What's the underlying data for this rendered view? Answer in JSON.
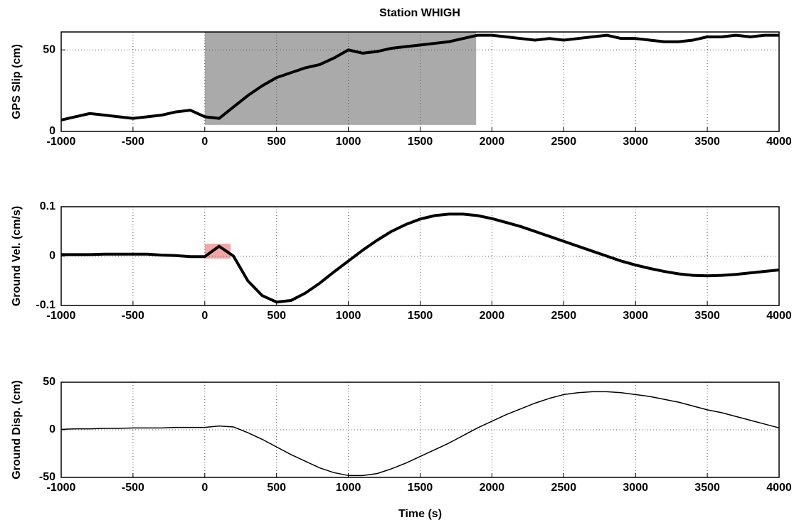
{
  "chart_data": [
    {
      "type": "line",
      "title": "Station WHIGH",
      "ylabel": "GPS Slip (cm)",
      "x": [
        -1000,
        -900,
        -800,
        -700,
        -600,
        -500,
        -400,
        -300,
        -200,
        -100,
        0,
        100,
        200,
        300,
        400,
        500,
        600,
        700,
        800,
        900,
        1000,
        1100,
        1200,
        1300,
        1400,
        1500,
        1600,
        1700,
        1800,
        1900,
        2000,
        2100,
        2200,
        2300,
        2400,
        2500,
        2600,
        2700,
        2800,
        2900,
        3000,
        3100,
        3200,
        3300,
        3400,
        3500,
        3600,
        3700,
        3800,
        3900,
        4000
      ],
      "series": [
        {
          "color": "#000000",
          "line_width": 4,
          "values": [
            7,
            9,
            11,
            10,
            9,
            8,
            9,
            10,
            12,
            13,
            9,
            8,
            15,
            22,
            28,
            33,
            36,
            39,
            41,
            45,
            50,
            48,
            49,
            51,
            52,
            53,
            54,
            55,
            57,
            59,
            59,
            58,
            57,
            56,
            57,
            56,
            57,
            58,
            59,
            57,
            57,
            56,
            55,
            55,
            56,
            58,
            58,
            59,
            58,
            59,
            59
          ]
        }
      ],
      "highlights": [
        {
          "x": [
            0,
            1890
          ],
          "y": [
            4,
            61
          ],
          "color": "#aaaaaa"
        }
      ],
      "xlim": [
        -1000,
        4000
      ],
      "xticks": [
        -1000,
        -500,
        0,
        500,
        1000,
        1500,
        2000,
        2500,
        3000,
        3500,
        4000
      ],
      "ylim": [
        0,
        61
      ],
      "yticks": [
        0,
        50
      ],
      "grid": true
    },
    {
      "type": "line",
      "ylabel": "Ground Vel. (cm/s)",
      "x": [
        -1000,
        -900,
        -800,
        -700,
        -600,
        -500,
        -400,
        -300,
        -200,
        -100,
        0,
        100,
        200,
        300,
        400,
        500,
        600,
        700,
        800,
        900,
        1000,
        1100,
        1200,
        1300,
        1400,
        1500,
        1600,
        1700,
        1800,
        1900,
        2000,
        2100,
        2200,
        2300,
        2400,
        2500,
        2600,
        2700,
        2800,
        2900,
        3000,
        3100,
        3200,
        3300,
        3400,
        3500,
        3600,
        3700,
        3800,
        3900,
        4000
      ],
      "series": [
        {
          "color": "#000000",
          "line_width": 4,
          "values": [
            0.003,
            0.003,
            0.003,
            0.004,
            0.004,
            0.004,
            0.004,
            0.002,
            0.001,
            -0.001,
            -0.001,
            0.02,
            0.0,
            -0.05,
            -0.08,
            -0.093,
            -0.09,
            -0.075,
            -0.055,
            -0.032,
            -0.01,
            0.012,
            0.032,
            0.05,
            0.064,
            0.075,
            0.082,
            0.085,
            0.085,
            0.082,
            0.076,
            0.068,
            0.06,
            0.05,
            0.04,
            0.03,
            0.02,
            0.01,
            0.0,
            -0.01,
            -0.018,
            -0.025,
            -0.031,
            -0.036,
            -0.039,
            -0.04,
            -0.039,
            -0.037,
            -0.034,
            -0.031,
            -0.028
          ]
        }
      ],
      "highlights": [
        {
          "x": [
            0,
            180
          ],
          "y": [
            -0.005,
            0.025
          ],
          "color": "#f4a6a6"
        }
      ],
      "xlim": [
        -1000,
        4000
      ],
      "xticks": [
        -1000,
        -500,
        0,
        500,
        1000,
        1500,
        2000,
        2500,
        3000,
        3500,
        4000
      ],
      "ylim": [
        -0.1,
        0.1
      ],
      "yticks": [
        -0.1,
        0,
        0.1
      ],
      "grid": true
    },
    {
      "type": "line",
      "ylabel": "Ground Disp. (cm)",
      "xlabel": "Time (s)",
      "x": [
        -1000,
        -900,
        -800,
        -700,
        -600,
        -500,
        -400,
        -300,
        -200,
        -100,
        0,
        100,
        200,
        300,
        400,
        500,
        600,
        700,
        800,
        900,
        1000,
        1100,
        1200,
        1300,
        1400,
        1500,
        1600,
        1700,
        1800,
        1900,
        2000,
        2100,
        2200,
        2300,
        2400,
        2500,
        2600,
        2700,
        2800,
        2900,
        3000,
        3100,
        3200,
        3300,
        3400,
        3500,
        3600,
        3700,
        3800,
        3900,
        4000
      ],
      "series": [
        {
          "color": "#000000",
          "line_width": 1.5,
          "values": [
            0.5,
            1,
            1,
            1.5,
            1.5,
            2,
            2,
            2,
            2.5,
            2.5,
            2.5,
            4,
            3,
            -3,
            -10,
            -18,
            -26,
            -33,
            -40,
            -45,
            -48,
            -48,
            -46,
            -41,
            -35,
            -28,
            -21,
            -14,
            -6,
            2,
            9,
            16,
            22,
            28,
            33,
            37,
            39,
            40,
            40,
            39,
            37,
            35,
            32,
            29,
            25,
            21,
            18,
            14,
            10,
            6,
            2
          ]
        }
      ],
      "xlim": [
        -1000,
        4000
      ],
      "xticks": [
        -1000,
        -500,
        0,
        500,
        1000,
        1500,
        2000,
        2500,
        3000,
        3500,
        4000
      ],
      "ylim": [
        -50,
        50
      ],
      "yticks": [
        -50,
        0,
        50
      ],
      "grid": true
    }
  ]
}
